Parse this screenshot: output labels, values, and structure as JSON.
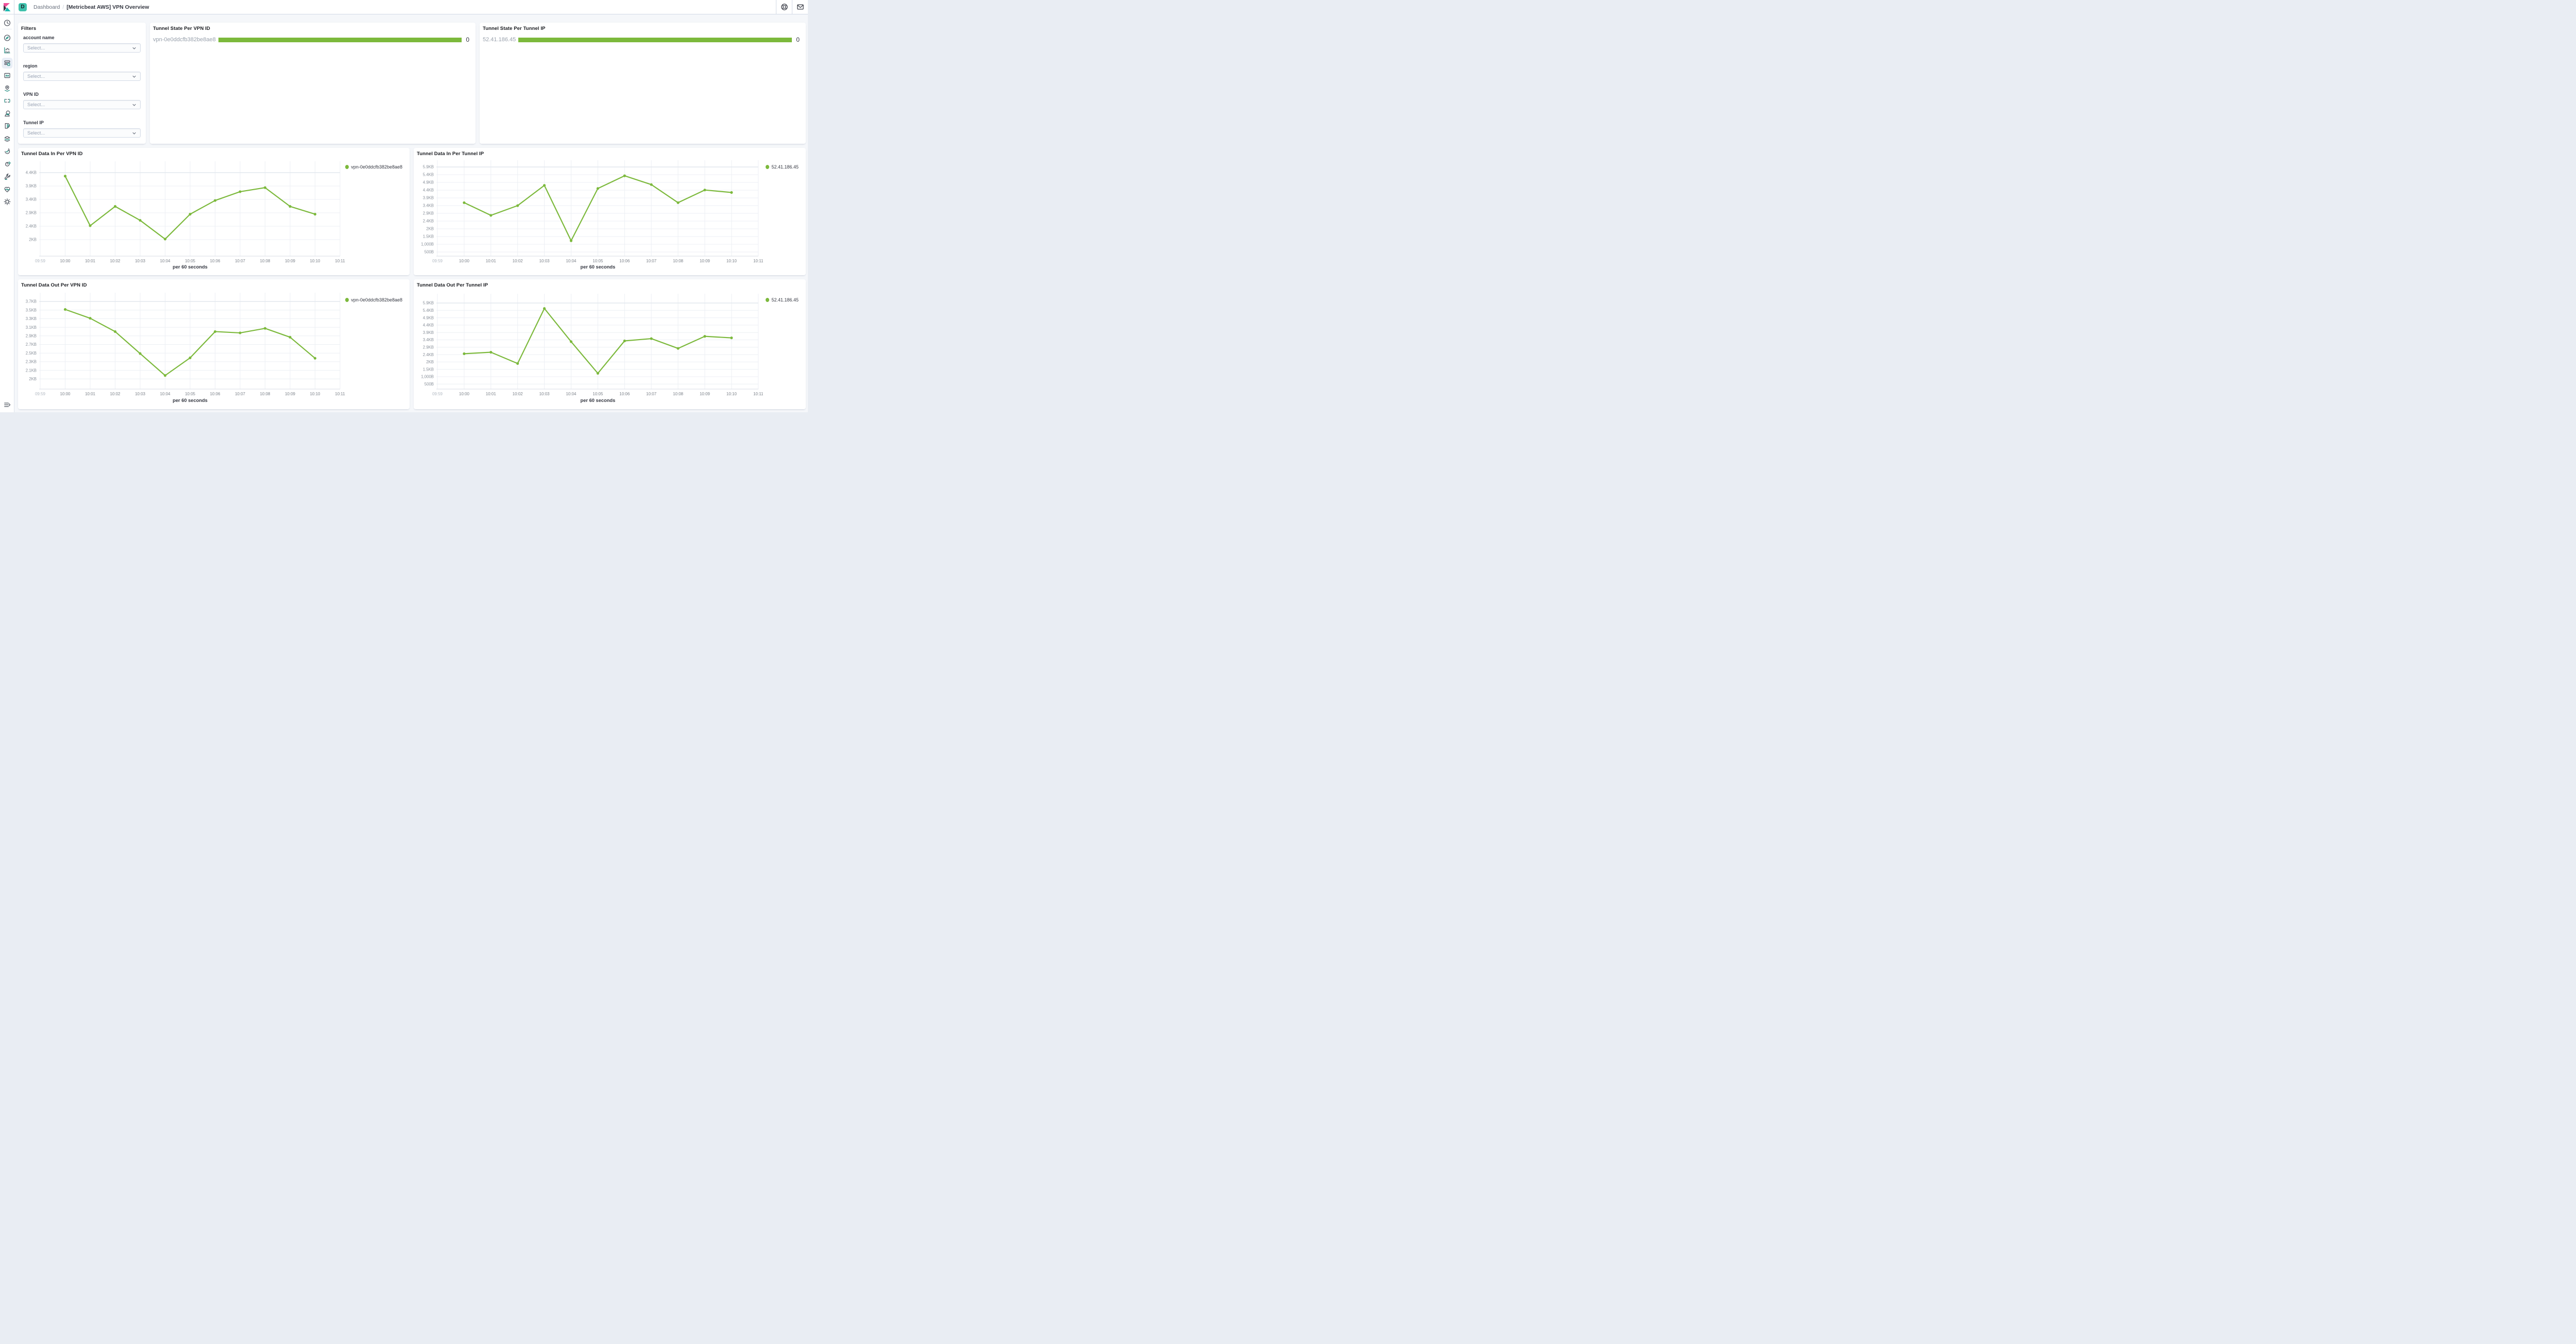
{
  "header": {
    "space_badge": "D",
    "breadcrumb": [
      "Dashboard",
      "[Metricbeat AWS] VPN Overview"
    ],
    "breadcrumb_separator": "/",
    "icons_right": [
      "help-icon",
      "mail-icon"
    ]
  },
  "sidebar": {
    "items": [
      {
        "name": "recently-viewed",
        "icon": "clock"
      },
      {
        "name": "discover",
        "icon": "compass"
      },
      {
        "name": "visualize",
        "icon": "bar-chart"
      },
      {
        "name": "dashboard",
        "icon": "dashboard",
        "active": true
      },
      {
        "name": "canvas",
        "icon": "canvas"
      },
      {
        "name": "maps",
        "icon": "map-pin"
      },
      {
        "name": "machine-learning",
        "icon": "ml-nodes"
      },
      {
        "name": "graph",
        "icon": "graph"
      },
      {
        "name": "siem",
        "icon": "siem"
      },
      {
        "name": "logs",
        "icon": "logs"
      },
      {
        "name": "uptime",
        "icon": "uptime"
      },
      {
        "name": "metrics",
        "icon": "metrics"
      },
      {
        "name": "dev-tools",
        "icon": "wrench"
      },
      {
        "name": "stack-monitoring",
        "icon": "heartbeat"
      },
      {
        "name": "management",
        "icon": "gear"
      }
    ],
    "expand_icon": "menu-expand"
  },
  "filters": {
    "title": "Filters",
    "fields": [
      {
        "label": "account name",
        "placeholder": "Select..."
      },
      {
        "label": "region",
        "placeholder": "Select..."
      },
      {
        "label": "VPN ID",
        "placeholder": "Select..."
      },
      {
        "label": "Tunnel IP",
        "placeholder": "Select..."
      }
    ]
  },
  "state_panels": [
    {
      "title": "Tunnel State Per VPN ID",
      "label": "vpn-0e0ddcfb382be8ae8",
      "value": "0"
    },
    {
      "title": "Tunnel State Per Tunnel IP",
      "label": "52.41.186.45",
      "value": "0"
    }
  ],
  "chart_data": [
    {
      "type": "line",
      "title": "Tunnel Data In Per VPN ID",
      "legend": "vpn-0e0ddcfb382be8ae8",
      "legend_position": "top-right",
      "xlabel": "per 60 seconds",
      "x_ticks": [
        "09:59",
        "10:00",
        "10:01",
        "10:02",
        "10:03",
        "10:04",
        "10:05",
        "10:06",
        "10:07",
        "10:08",
        "10:09",
        "10:10",
        "10:11"
      ],
      "x": [
        "10:00",
        "10:01",
        "10:02",
        "10:03",
        "10:04",
        "10:05",
        "10:06",
        "10:07",
        "10:08",
        "10:09",
        "10:10"
      ],
      "values_bytes": [
        4370,
        2520,
        3240,
        2720,
        2020,
        2950,
        3460,
        3790,
        3940,
        3240,
        2950
      ],
      "y_tick_labels": [
        "4.4KB",
        "3.9KB",
        "3.4KB",
        "2.9KB",
        "2.4KB",
        "2KB"
      ],
      "y_tick_values_bytes": [
        4500,
        4000,
        3500,
        3000,
        2500,
        2000
      ],
      "grid": true,
      "line_color": "#7cb93c"
    },
    {
      "type": "line",
      "title": "Tunnel Data In Per Tunnel IP",
      "legend": "52.41.186.45",
      "legend_position": "top-right",
      "xlabel": "per 60 seconds",
      "x_ticks": [
        "09:59",
        "10:00",
        "10:01",
        "10:02",
        "10:03",
        "10:04",
        "10:05",
        "10:06",
        "10:07",
        "10:08",
        "10:09",
        "10:10",
        "10:11"
      ],
      "x": [
        "10:00",
        "10:01",
        "10:02",
        "10:03",
        "10:04",
        "10:05",
        "10:06",
        "10:07",
        "10:08",
        "10:09",
        "10:10"
      ],
      "values_bytes": [
        3690,
        2870,
        3500,
        4810,
        1230,
        4610,
        5430,
        4860,
        3690,
        4510,
        4350
      ],
      "y_tick_labels": [
        "5.9KB",
        "5.4KB",
        "4.9KB",
        "4.4KB",
        "3.9KB",
        "3.4KB",
        "2.9KB",
        "2.4KB",
        "2KB",
        "1.5KB",
        "1,000B",
        "500B"
      ],
      "y_tick_values_bytes": [
        6000,
        5500,
        5000,
        4500,
        4000,
        3500,
        3000,
        2500,
        2000,
        1500,
        1000,
        500
      ],
      "grid": true,
      "line_color": "#7cb93c"
    },
    {
      "type": "line",
      "title": "Tunnel Data Out Per VPN ID",
      "legend": "vpn-0e0ddcfb382be8ae8",
      "legend_position": "top-right",
      "xlabel": "per 60 seconds",
      "x_ticks": [
        "09:59",
        "10:00",
        "10:01",
        "10:02",
        "10:03",
        "10:04",
        "10:05",
        "10:06",
        "10:07",
        "10:08",
        "10:09",
        "10:10",
        "10:11"
      ],
      "x": [
        "10:00",
        "10:01",
        "10:02",
        "10:03",
        "10:04",
        "10:05",
        "10:06",
        "10:07",
        "10:08",
        "10:09",
        "10:10"
      ],
      "values_bytes": [
        3615,
        3410,
        3100,
        2590,
        2080,
        2490,
        3100,
        3070,
        3175,
        2970,
        2480
      ],
      "y_tick_labels": [
        "3.7KB",
        "3.5KB",
        "3.3KB",
        "3.1KB",
        "2.9KB",
        "2.7KB",
        "2.5KB",
        "2.3KB",
        "2.1KB",
        "2KB"
      ],
      "y_tick_values_bytes": [
        3800,
        3600,
        3400,
        3200,
        3000,
        2800,
        2600,
        2400,
        2200,
        2000
      ],
      "grid": true,
      "line_color": "#7cb93c"
    },
    {
      "type": "line",
      "title": "Tunnel Data Out Per Tunnel IP",
      "legend": "52.41.186.45",
      "legend_position": "top-right",
      "xlabel": "per 60 seconds",
      "x_ticks": [
        "09:59",
        "10:00",
        "10:01",
        "10:02",
        "10:03",
        "10:04",
        "10:05",
        "10:06",
        "10:07",
        "10:08",
        "10:09",
        "10:10",
        "10:11"
      ],
      "x": [
        "10:00",
        "10:01",
        "10:02",
        "10:03",
        "10:04",
        "10:05",
        "10:06",
        "10:07",
        "10:08",
        "10:09",
        "10:10"
      ],
      "values_bytes": [
        2560,
        2660,
        1895,
        5630,
        3380,
        1230,
        3430,
        3585,
        2920,
        3740,
        3635
      ],
      "y_tick_labels": [
        "5.9KB",
        "5.4KB",
        "4.9KB",
        "4.4KB",
        "3.9KB",
        "3.4KB",
        "2.9KB",
        "2.4KB",
        "2KB",
        "1.5KB",
        "1,000B",
        "500B"
      ],
      "y_tick_values_bytes": [
        6000,
        5500,
        5000,
        4500,
        4000,
        3500,
        3000,
        2500,
        2000,
        1500,
        1000,
        500
      ],
      "grid": true,
      "line_color": "#7cb93c"
    }
  ],
  "colors": {
    "accent_green": "#7cb93c",
    "badge_teal": "#3fc1ac",
    "logo_pink": "#f04e98",
    "logo_dark": "#343741",
    "logo_teal": "#1dbab0",
    "panel_bg": "#ffffff",
    "page_bg": "#f5f7fa"
  }
}
